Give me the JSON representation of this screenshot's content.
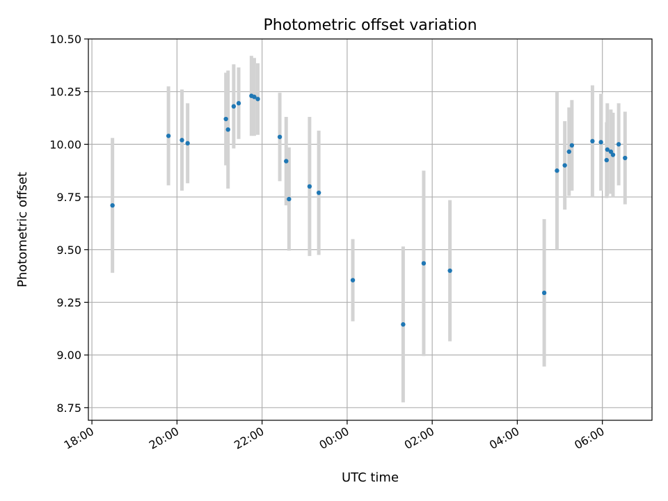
{
  "chart_data": {
    "type": "scatter",
    "title": "Photometric offset variation",
    "xlabel": "UTC time",
    "ylabel": "Photometric offset",
    "x_axis_type": "time",
    "xlim": [
      "17:55",
      "07:10"
    ],
    "ylim": [
      8.69,
      10.5
    ],
    "x_ticks": [
      "18:00",
      "20:00",
      "22:00",
      "00:00",
      "02:00",
      "04:00",
      "06:00"
    ],
    "y_ticks": [
      "8.75",
      "9.00",
      "9.25",
      "9.50",
      "9.75",
      "10.00",
      "10.25",
      "10.50"
    ],
    "grid": true,
    "colors": {
      "points": "#1f77b4",
      "errorbars": "#d3d3d3",
      "grid": "#b0b0b0"
    },
    "points": [
      {
        "x": "18:29",
        "y": 9.71,
        "yerr": 0.32
      },
      {
        "x": "19:48",
        "y": 10.04,
        "yerr": 0.235
      },
      {
        "x": "20:07",
        "y": 10.02,
        "yerr": 0.24
      },
      {
        "x": "20:15",
        "y": 10.005,
        "yerr": 0.19
      },
      {
        "x": "21:09",
        "y": 10.12,
        "yerr": 0.22
      },
      {
        "x": "21:12",
        "y": 10.07,
        "yerr": 0.28
      },
      {
        "x": "21:20",
        "y": 10.18,
        "yerr": 0.2
      },
      {
        "x": "21:27",
        "y": 10.195,
        "yerr": 0.17
      },
      {
        "x": "21:45",
        "y": 10.23,
        "yerr": 0.19
      },
      {
        "x": "21:49",
        "y": 10.225,
        "yerr": 0.185
      },
      {
        "x": "21:54",
        "y": 10.215,
        "yerr": 0.17
      },
      {
        "x": "22:25",
        "y": 10.035,
        "yerr": 0.21
      },
      {
        "x": "22:34",
        "y": 9.92,
        "yerr": 0.21
      },
      {
        "x": "22:38",
        "y": 9.74,
        "yerr": 0.245
      },
      {
        "x": "23:07",
        "y": 9.8,
        "yerr": 0.33
      },
      {
        "x": "23:20",
        "y": 9.77,
        "yerr": 0.295
      },
      {
        "x": "00:08",
        "y": 9.355,
        "yerr": 0.195
      },
      {
        "x": "01:19",
        "y": 9.145,
        "yerr": 0.37
      },
      {
        "x": "01:48",
        "y": 9.435,
        "yerr": 0.44
      },
      {
        "x": "02:25",
        "y": 9.4,
        "yerr": 0.335
      },
      {
        "x": "04:38",
        "y": 9.295,
        "yerr": 0.35
      },
      {
        "x": "04:56",
        "y": 9.875,
        "yerr": 0.375
      },
      {
        "x": "05:07",
        "y": 9.9,
        "yerr": 0.21
      },
      {
        "x": "05:13",
        "y": 9.965,
        "yerr": 0.21
      },
      {
        "x": "05:17",
        "y": 9.995,
        "yerr": 0.215
      },
      {
        "x": "05:46",
        "y": 10.015,
        "yerr": 0.265
      },
      {
        "x": "05:58",
        "y": 10.01,
        "yerr": 0.23
      },
      {
        "x": "06:06",
        "y": 9.925,
        "yerr": 0.18
      },
      {
        "x": "06:07",
        "y": 9.975,
        "yerr": 0.22
      },
      {
        "x": "06:12",
        "y": 9.965,
        "yerr": 0.2
      },
      {
        "x": "06:15",
        "y": 9.95,
        "yerr": 0.2
      },
      {
        "x": "06:23",
        "y": 10.0,
        "yerr": 0.195
      },
      {
        "x": "06:32",
        "y": 9.935,
        "yerr": 0.22
      }
    ]
  }
}
